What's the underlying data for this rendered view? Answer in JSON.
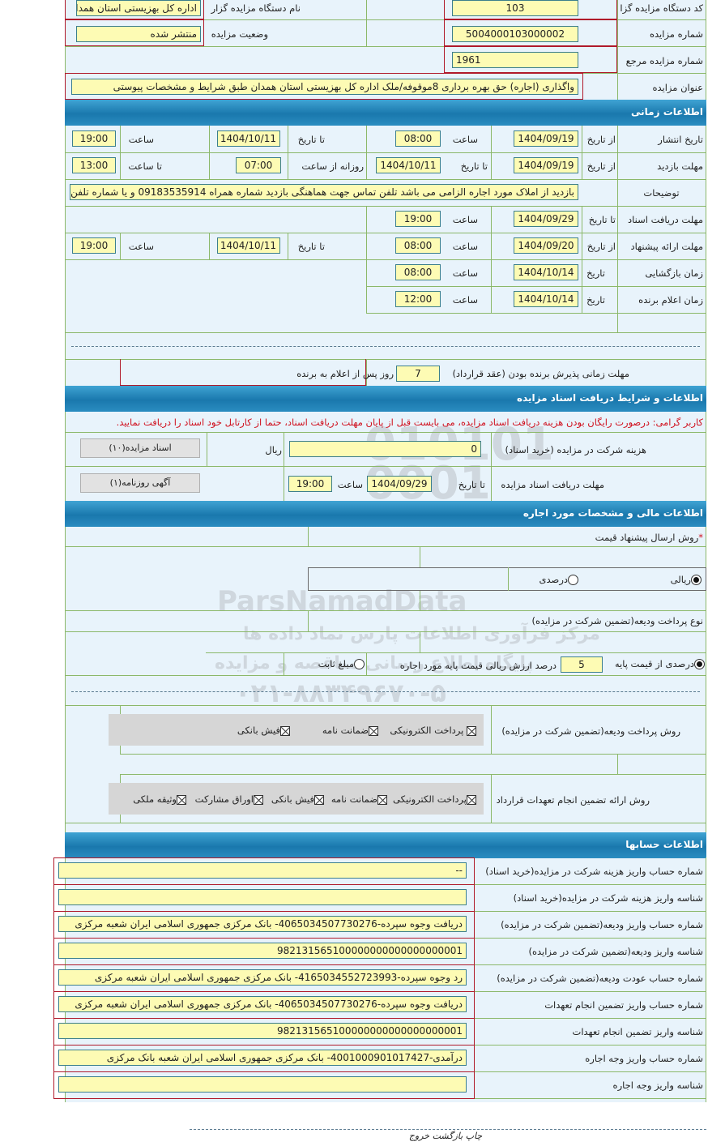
{
  "general": {
    "org_code_label": "کد دستگاه مزایده گزار",
    "org_code": "103",
    "org_name_label": "نام دستگاه مزایده گزار",
    "org_name": "اداره کل بهزیستی استان همدان",
    "auction_no_label": "شماره مزایده",
    "auction_no": "5004000103000002",
    "status_label": "وضعیت مزایده",
    "status": "منتشر شده",
    "ref_no_label": "شماره مزایده مرجع",
    "ref_no": "1961",
    "title_label": "عنوان مزایده",
    "title": "واگذاری (اجاره) حق بهره برداری 8موقوفه/ملک اداره کل بهزیستی استان همدان طبق شرایط و مشخصات پیوستی"
  },
  "time": {
    "header": "اطلاعات زمانی",
    "from_date": "از تاریخ",
    "to_date": "تا تاریخ",
    "date": "تاریخ",
    "hour": "ساعت",
    "to_hour": "تا ساعت",
    "daily_from": "روزانه از ساعت",
    "publish": {
      "label": "تاریخ انتشار",
      "from": "1404/09/19",
      "from_time": "08:00",
      "to": "1404/10/11",
      "to_time": "19:00"
    },
    "visit": {
      "label": "مهلت بازدید",
      "from": "1404/09/19",
      "to": "1404/10/11",
      "daily_from": "07:00",
      "daily_to": "13:00"
    },
    "notes": {
      "label": "توضیحات",
      "value": "بازدید از املاک مورد اجاره  الزامی می باشد تلفن تماس جهت هماهنگی بازدید شماره همراه 09183535914  و یا شماره تلفن"
    },
    "docs": {
      "label": "مهلت دریافت اسناد",
      "to": "1404/09/29",
      "to_time": "19:00"
    },
    "offer": {
      "label": "مهلت ارائه پیشنهاد",
      "from": "1404/09/20",
      "from_time": "08:00",
      "to": "1404/10/11",
      "to_time": "19:00"
    },
    "opening": {
      "label": "زمان بازگشایی",
      "date": "1404/10/14",
      "time": "08:00"
    },
    "winner": {
      "label": "زمان اعلام برنده",
      "date": "1404/10/14",
      "time": "12:00"
    },
    "acceptance": {
      "label": "مهلت زمانی پذیرش برنده بودن (عقد قرارداد)",
      "days": "7",
      "suffix": "روز پس از اعلام به برنده"
    }
  },
  "docs": {
    "header": "اطلاعات و شرایط دریافت اسناد مزایده",
    "warning": "کاربر گرامی: درصورت رایگان بودن هزینه دریافت اسناد مزایده، می بایست قبل از پایان مهلت دریافت اسناد، حتما از کارتابل خود اسناد را دریافت نمایید.",
    "fee_label": "هزینه شرکت در مزایده (خرید اسناد)",
    "fee": "0",
    "currency": "ریال",
    "docs_button": "اسناد مزایده(۱۰)",
    "deadline_label": "مهلت دریافت اسناد مزایده",
    "to_date": "تا تاریخ",
    "date": "1404/09/29",
    "hour": "ساعت",
    "time": "19:00",
    "ad_button": "آگهی روزنامه(۱)"
  },
  "financial": {
    "header": "اطلاعات مالی و مشخصات مورد اجاره",
    "price_method_label": "روش ارسال پیشنهاد قیمت",
    "rial": "ریالی",
    "percent": "درصدی",
    "price_method_selected": "ریالی",
    "deposit_type_label": "نوع پرداخت ودیعه(تضمین شرکت در مزایده)",
    "percent_of_base": "درصدی از قیمت پایه",
    "deposit_percent": "5",
    "percent_text": "درصد ارزش ریالی قیمت پایه مورد اجاره",
    "fixed_amount": "مبلغ ثابت",
    "deposit_type_selected": "درصدی از قیمت پایه",
    "deposit_methods_label": "روش پرداخت ودیعه(تضمین شرکت در مزایده)",
    "deposit_methods": [
      "پرداخت الکترونیکی",
      "ضمانت نامه",
      "فیش بانکی"
    ],
    "guarantee_methods_label": "روش ارائه تضمین انجام تعهدات قرارداد",
    "guarantee_methods": [
      "پرداخت الکترونیکی",
      "ضمانت نامه",
      "فیش بانکی",
      "اوراق مشارکت",
      "وثیقه ملکی"
    ]
  },
  "accounts": {
    "header": "اطلاعات حسابها",
    "rows": [
      {
        "label": "شماره حساب واریز هزینه شرکت در مزایده(خرید اسناد)",
        "value": "--"
      },
      {
        "label": "شناسه واریز هزینه شرکت در مزایده(خرید اسناد)",
        "value": ""
      },
      {
        "label": "شماره حساب واریز ودیعه(تضمین شرکت در مزایده)",
        "value": "دریافت وجوه سپرده-4065034507730276- بانک مرکزی جمهوری اسلامی ایران شعبه مرکزی"
      },
      {
        "label": "شناسه واریز ودیعه(تضمین شرکت در مزایده)",
        "value": "982131565100000000000000000001"
      },
      {
        "label": "شماره حساب عودت ودیعه(تضمین شرکت در مزایده)",
        "value": "رد وجوه سپرده-4165034552723993- بانک مرکزی جمهوری اسلامی ایران شعبه مرکزی"
      },
      {
        "label": "شماره حساب واریز تضمین انجام تعهدات",
        "value": "دریافت وجوه سپرده-4065034507730276- بانک مرکزی جمهوری اسلامی ایران شعبه مرکزی"
      },
      {
        "label": "شناسه واریز تضمین انجام تعهدات",
        "value": "982131565100000000000000000001"
      },
      {
        "label": "شماره حساب واریز وجه اجاره",
        "value": "درآمدی-4001000901017427- بانک مرکزی جمهوری اسلامی ایران شعبه بانک مرکزی"
      },
      {
        "label": "شناسه واریز وجه اجاره",
        "value": ""
      }
    ]
  },
  "footer": {
    "print": "چاپ",
    "back": "بازگشت",
    "exit": "خروج"
  },
  "watermark": {
    "brand": "ParsNamadData",
    "line1": "مرکز فرآوری اطلاعات پارس نماد داده ها",
    "line2": "پایگاه اطلاع رسانی مناقصه و مزایده",
    "phone": "۰۲۱-۸۸۳۴۹۶۷۰-۵"
  },
  "colors": {
    "header": "#1a78ad",
    "input_bg": "#fdfbb4",
    "panel_bg": "#e8f3fb",
    "warning": "#d0101e",
    "border_red": "#b0192a",
    "grid_green": "#8bb86a"
  }
}
